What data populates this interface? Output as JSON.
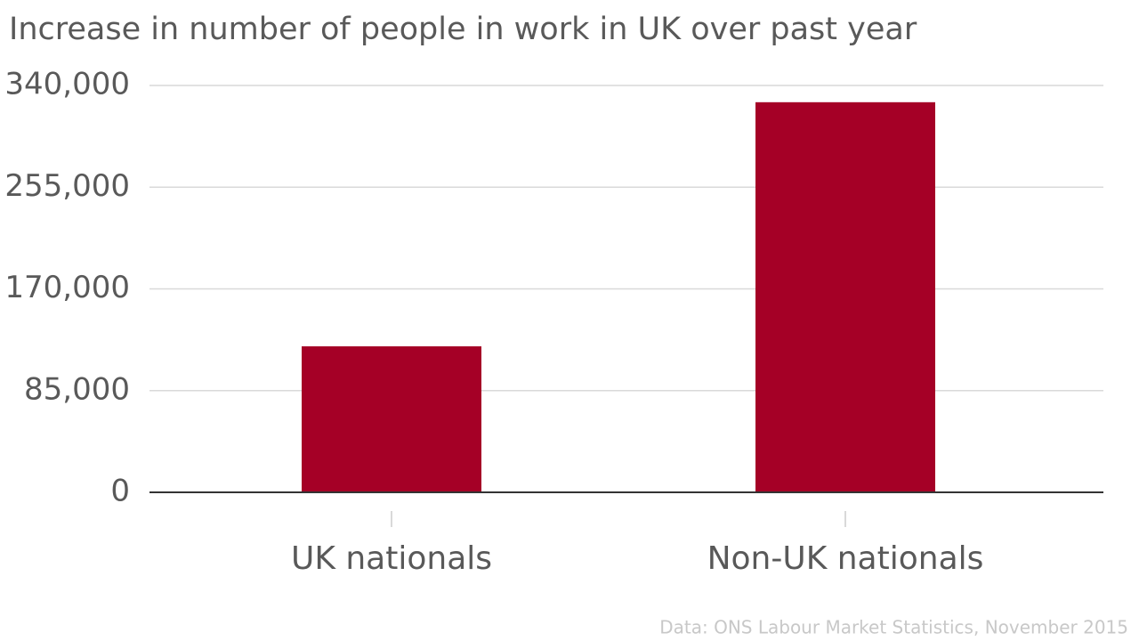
{
  "chart_data": {
    "type": "bar",
    "title": "Increase in number of people in work in UK over past year",
    "source": "Data: ONS Labour Market Statistics, November 2015",
    "categories": [
      "UK nationals",
      "Non-UK nationals"
    ],
    "values": [
      122000,
      326000
    ],
    "color": "#a50026",
    "ylim": [
      0,
      340000
    ],
    "yticks": [
      0,
      {
        "value": 85000,
        "label": "85,000"
      },
      {
        "value": 170000,
        "label": "170,000"
      },
      {
        "value": 255000,
        "label": "255,000"
      },
      {
        "value": 340000,
        "label": "340,000"
      }
    ],
    "grid": true
  }
}
